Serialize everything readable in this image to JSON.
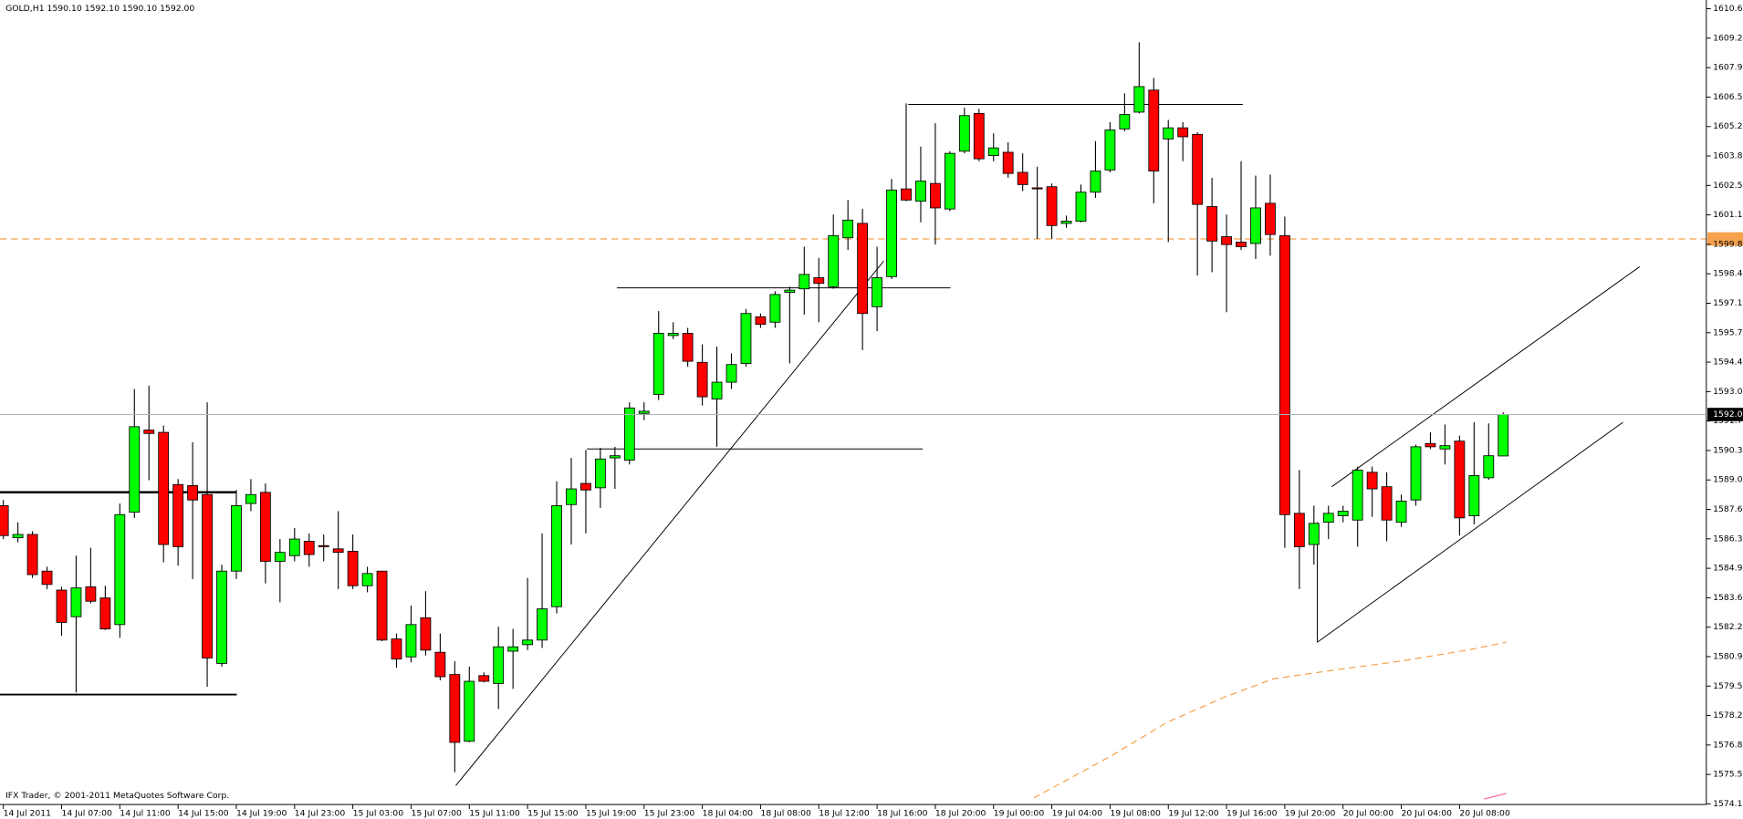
{
  "chart_data": {
    "type": "candlestick",
    "header": "GOLD,H1  1590.10 1592.10 1590.10 1592.00",
    "footer": "IFX Trader, © 2001-2011 MetaQuotes Software Corp.",
    "up_color": "#00ff00",
    "down_color": "#ff0000",
    "categories": [
      "14 Jul 2011",
      null,
      null,
      null,
      "14 Jul 07:00",
      null,
      null,
      null,
      "14 Jul 11:00",
      null,
      null,
      null,
      "14 Jul 15:00",
      null,
      null,
      null,
      "14 Jul 19:00",
      null,
      null,
      null,
      "14 Jul 23:00",
      null,
      null,
      null,
      "15 Jul 03:00",
      null,
      null,
      null,
      "15 Jul 07:00",
      null,
      null,
      null,
      "15 Jul 11:00",
      null,
      null,
      null,
      "15 Jul 15:00",
      null,
      null,
      null,
      "15 Jul 19:00",
      null,
      null,
      null,
      "15 Jul 23:00",
      null,
      null,
      null,
      "18 Jul 04:00",
      null,
      null,
      null,
      "18 Jul 08:00",
      null,
      null,
      null,
      "18 Jul 12:00",
      null,
      null,
      null,
      "18 Jul 16:00",
      null,
      null,
      null,
      "18 Jul 20:00",
      null,
      null,
      null,
      "19 Jul 00:00",
      null,
      null,
      null,
      "19 Jul 04:00",
      null,
      null,
      null,
      "19 Jul 08:00",
      null,
      null,
      null,
      "19 Jul 12:00",
      null,
      null,
      null,
      "19 Jul 16:00",
      null,
      null,
      null,
      "19 Jul 20:00",
      null,
      null,
      null,
      "20 Jul 00:00",
      null,
      null,
      null,
      "20 Jul 04:00",
      null,
      null,
      null,
      "20 Jul 08:00",
      null,
      null,
      null
    ],
    "open": [
      1587.82,
      1586.35,
      1586.5,
      1584.82,
      1583.95,
      1582.73,
      1584.1,
      1583.59,
      1582.37,
      1587.52,
      1591.29,
      1591.18,
      1588.79,
      1588.74,
      1588.33,
      1580.59,
      1584.82,
      1587.92,
      1588.43,
      1585.27,
      1585.53,
      1586.19,
      1585.99,
      1585.84,
      1585.73,
      1584.15,
      1584.82,
      1581.71,
      1580.89,
      1582.68,
      1581.1,
      1580.08,
      1577.02,
      1580.03,
      1579.67,
      1581.15,
      1581.45,
      1581.66,
      1583.19,
      1587.87,
      1588.84,
      1588.64,
      1590.01,
      1589.91,
      1592.05,
      1592.92,
      1595.62,
      1595.72,
      1594.39,
      1592.71,
      1593.48,
      1594.34,
      1596.48,
      1596.23,
      1597.6,
      1597.76,
      1598.27,
      1597.86,
      1600.1,
      1600.76,
      1596.94,
      1598.32,
      1602.34,
      1601.78,
      1602.59,
      1601.42,
      1604.07,
      1605.8,
      1603.87,
      1604.02,
      1603.1,
      1602.39,
      1602.44,
      1600.76,
      1600.86,
      1602.19,
      1603.21,
      1605.09,
      1605.86,
      1606.87,
      1604.63,
      1605.14,
      1604.84,
      1601.53,
      1600.15,
      1599.9,
      1599.84,
      1601.68,
      1600.2,
      1587.47,
      1586.04,
      1587.06,
      1587.36,
      1587.16,
      1589.35,
      1588.69,
      1587.06,
      1588.08,
      1590.67,
      1590.42,
      1590.78,
      1587.36,
      1589.1,
      1590.1
    ],
    "high": [
      1588.08,
      1587.06,
      1586.65,
      1585.02,
      1584.1,
      1585.53,
      1585.89,
      1584.15,
      1587.92,
      1593.17,
      1593.32,
      1591.49,
      1589.04,
      1590.73,
      1592.56,
      1585.12,
      1588.54,
      1589.04,
      1588.84,
      1586.29,
      1586.8,
      1586.55,
      1586.5,
      1587.57,
      1586.5,
      1585.02,
      1584.82,
      1581.96,
      1583.24,
      1583.9,
      1581.96,
      1580.69,
      1580.44,
      1580.18,
      1582.27,
      1582.17,
      1584.51,
      1586.55,
      1588.94,
      1590.01,
      1590.37,
      1590.47,
      1590.52,
      1592.56,
      1592.56,
      1596.74,
      1596.23,
      1595.97,
      1595.21,
      1595.11,
      1594.8,
      1596.84,
      1596.63,
      1597.65,
      1597.86,
      1599.69,
      1599.18,
      1601.17,
      1601.83,
      1601.42,
      1599.69,
      1602.8,
      1606.26,
      1604.28,
      1605.35,
      1604.07,
      1606.06,
      1606.01,
      1604.89,
      1604.48,
      1603.97,
      1603.36,
      1602.59,
      1601.12,
      1602.54,
      1604.53,
      1605.4,
      1606.72,
      1609.06,
      1607.43,
      1605.5,
      1605.4,
      1604.94,
      1602.85,
      1601.17,
      1603.61,
      1602.95,
      1603.0,
      1601.07,
      1589.45,
      1587.82,
      1587.82,
      1587.82,
      1589.61,
      1589.61,
      1589.35,
      1588.33,
      1590.62,
      1591.18,
      1591.54,
      1591.03,
      1591.64,
      1591.59,
      1592.1
    ],
    "low": [
      1586.29,
      1586.14,
      1584.51,
      1584.0,
      1581.86,
      1579.26,
      1583.34,
      1582.12,
      1581.76,
      1587.26,
      1588.99,
      1585.22,
      1585.07,
      1584.46,
      1579.52,
      1580.44,
      1584.46,
      1587.57,
      1584.26,
      1583.39,
      1585.27,
      1585.02,
      1585.27,
      1584.0,
      1584.0,
      1583.85,
      1581.61,
      1580.39,
      1580.64,
      1580.95,
      1579.82,
      1575.6,
      1576.97,
      1579.72,
      1578.5,
      1579.42,
      1581.2,
      1581.3,
      1582.88,
      1586.04,
      1586.55,
      1587.72,
      1588.59,
      1589.71,
      1591.74,
      1592.66,
      1595.46,
      1594.19,
      1592.41,
      1590.52,
      1593.17,
      1594.19,
      1595.97,
      1595.97,
      1594.34,
      1596.58,
      1596.23,
      1597.76,
      1599.54,
      1594.95,
      1595.82,
      1598.21,
      1601.78,
      1600.81,
      1599.79,
      1601.32,
      1603.97,
      1603.61,
      1603.61,
      1602.85,
      1602.24,
      1600.05,
      1600.05,
      1600.56,
      1600.81,
      1601.93,
      1603.1,
      1604.99,
      1605.8,
      1601.68,
      1599.9,
      1603.61,
      1598.37,
      1598.52,
      1596.69,
      1599.54,
      1599.13,
      1599.28,
      1585.89,
      1584.0,
      1585.12,
      1586.29,
      1587.06,
      1585.94,
      1587.31,
      1586.19,
      1586.85,
      1587.82,
      1590.42,
      1589.71,
      1586.45,
      1586.96,
      1589.0,
      1590.1
    ],
    "close": [
      1586.45,
      1586.5,
      1584.66,
      1584.21,
      1582.47,
      1584.05,
      1583.44,
      1582.17,
      1587.41,
      1591.44,
      1591.13,
      1586.04,
      1585.94,
      1588.08,
      1580.84,
      1584.82,
      1587.82,
      1588.33,
      1585.27,
      1585.68,
      1586.29,
      1585.58,
      1585.94,
      1585.68,
      1584.15,
      1584.71,
      1581.66,
      1580.79,
      1582.37,
      1581.2,
      1579.98,
      1576.97,
      1579.77,
      1579.77,
      1581.35,
      1581.35,
      1581.66,
      1583.09,
      1587.82,
      1588.59,
      1588.54,
      1589.96,
      1590.11,
      1592.3,
      1592.15,
      1595.72,
      1595.72,
      1594.44,
      1592.81,
      1593.48,
      1594.29,
      1596.63,
      1596.13,
      1597.5,
      1597.7,
      1598.42,
      1598.01,
      1600.2,
      1600.91,
      1596.63,
      1598.27,
      1602.29,
      1601.83,
      1602.7,
      1601.47,
      1603.97,
      1605.7,
      1603.72,
      1604.22,
      1603.05,
      1602.54,
      1602.34,
      1600.66,
      1600.86,
      1602.19,
      1603.16,
      1605.04,
      1605.75,
      1607.03,
      1603.16,
      1605.14,
      1604.73,
      1601.63,
      1599.95,
      1599.79,
      1599.69,
      1601.47,
      1600.25,
      1587.41,
      1585.94,
      1587.01,
      1587.47,
      1587.57,
      1589.45,
      1588.59,
      1587.16,
      1588.03,
      1590.52,
      1590.52,
      1590.57,
      1587.26,
      1589.2,
      1590.11,
      1592.0
    ],
    "ylim": [
      1574.12,
      1611.0
    ],
    "yticks": [
      {
        "value": 1610.6,
        "label": "1610.60"
      },
      {
        "value": 1609.25,
        "label": "1609.25"
      },
      {
        "value": 1607.9,
        "label": "1607.90"
      },
      {
        "value": 1606.55,
        "label": "1606.55"
      },
      {
        "value": 1605.2,
        "label": "1605.20"
      },
      {
        "value": 1603.85,
        "label": "1603.85"
      },
      {
        "value": 1602.5,
        "label": "1602.50"
      },
      {
        "value": 1601.15,
        "label": "1601.15"
      },
      {
        "value": 1599.8,
        "label": "1599.80"
      },
      {
        "value": 1598.45,
        "label": "1598.45"
      },
      {
        "value": 1597.1,
        "label": "1597.10"
      },
      {
        "value": 1595.75,
        "label": "1595.75"
      },
      {
        "value": 1594.4,
        "label": "1594.40"
      },
      {
        "value": 1593.05,
        "label": "1593.05"
      },
      {
        "value": 1591.7,
        "label": "1591.70"
      },
      {
        "value": 1590.35,
        "label": "1590.35"
      },
      {
        "value": 1589,
        "label": "1589.00"
      },
      {
        "value": 1587.65,
        "label": "1587.65"
      },
      {
        "value": 1586.3,
        "label": "1586.30"
      },
      {
        "value": 1584.95,
        "label": "1584.95"
      },
      {
        "value": 1583.6,
        "label": "1583.60"
      },
      {
        "value": 1582.25,
        "label": "1582.25"
      },
      {
        "value": 1580.9,
        "label": "1580.90"
      },
      {
        "value": 1579.55,
        "label": "1579.55"
      },
      {
        "value": 1578.2,
        "label": "1578.20"
      },
      {
        "value": 1576.85,
        "label": "1576.85"
      },
      {
        "value": 1575.5,
        "label": "1575.50"
      },
      {
        "value": 1574.15,
        "label": "1574.15"
      }
    ],
    "price_line": {
      "value": 1592.0,
      "label": "1592.00"
    },
    "grid": false
  }
}
